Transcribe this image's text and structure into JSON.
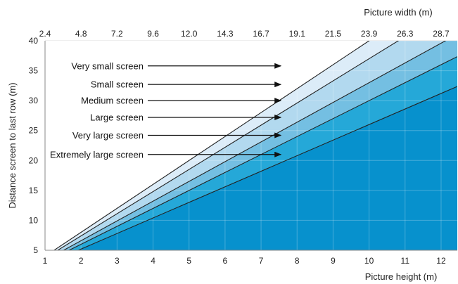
{
  "chart_data": {
    "type": "area",
    "title": "",
    "x_axis_bottom": {
      "label": "Picture height (m)",
      "range": [
        1,
        12.45
      ],
      "ticks": [
        "1",
        "2",
        "3",
        "4",
        "5",
        "6",
        "7",
        "8",
        "9",
        "10",
        "11",
        "12"
      ]
    },
    "x_axis_top": {
      "label": "Picture width (m)",
      "range": [
        2.4,
        29.88
      ],
      "ticks": [
        "2.4",
        "4.8",
        "7.2",
        "9.6",
        "12.0",
        "14.3",
        "16.7",
        "19.1",
        "21.5",
        "23.9",
        "26.3",
        "28.7"
      ]
    },
    "y_axis": {
      "label": "Distance screen to last row (m)",
      "range": [
        5,
        40
      ],
      "ticks": [
        "5",
        "10",
        "15",
        "20",
        "25",
        "30",
        "35",
        "40"
      ]
    },
    "grid": true,
    "lines": [
      {
        "name": "boundary-1",
        "slope": 4.0
      },
      {
        "name": "boundary-2",
        "slope": 3.7
      },
      {
        "name": "boundary-3",
        "slope": 3.3
      },
      {
        "name": "boundary-4",
        "slope": 3.0
      },
      {
        "name": "boundary-5",
        "slope": 2.6
      }
    ],
    "bands": [
      {
        "label": "Very small screen",
        "color": "#dcecf8"
      },
      {
        "label": "Small screen",
        "color": "#b2d9ef"
      },
      {
        "label": "Medium screen",
        "color": "#74bfe2"
      },
      {
        "label": "Large screen",
        "color": "#25a8d8"
      },
      {
        "label": "Very large screen",
        "color": "#0c9bd2"
      },
      {
        "label": "Extremely large screen",
        "color": "#0791cd"
      }
    ],
    "annotations": [
      {
        "text": "Very small screen",
        "y": 35.8
      },
      {
        "text": "Small screen",
        "y": 32.7
      },
      {
        "text": "Medium screen",
        "y": 30.0
      },
      {
        "text": "Large screen",
        "y": 27.2
      },
      {
        "text": "Very large screen",
        "y": 24.2
      },
      {
        "text": "Extremely large screen",
        "y": 21.0
      }
    ],
    "arrow_tip_x": 7.55,
    "colors": {
      "grid": "#dddddd",
      "axis": "#888888",
      "line": "#222222",
      "arrow": "#111111"
    }
  }
}
